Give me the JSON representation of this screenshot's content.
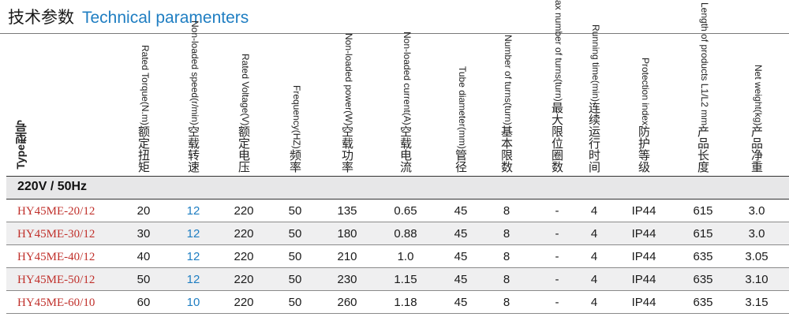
{
  "title": {
    "cn": "技术参数",
    "en": "Technical paramenters"
  },
  "type_header": {
    "en": "Type",
    "cn": "型号"
  },
  "columns": [
    {
      "key": "torque",
      "en": "Rated Torque(N.m)",
      "cn": "额定扭矩"
    },
    {
      "key": "speed",
      "en": "Non-loaded speed(r/min)",
      "cn": "空载转速"
    },
    {
      "key": "voltage",
      "en": "Rated Voltage(V)",
      "cn": "额定电压"
    },
    {
      "key": "freq",
      "en": "Frequency(HZ)",
      "cn": "频率"
    },
    {
      "key": "power",
      "en": "Non-loaded power(W)",
      "cn": "空载功率"
    },
    {
      "key": "current",
      "en": "Non-loaded current(A)",
      "cn": "空载电流"
    },
    {
      "key": "tube",
      "en": "Tube diameter(mm)",
      "cn": "管径"
    },
    {
      "key": "turns",
      "en": "Number of turns(turn)",
      "cn": "基本限数"
    },
    {
      "key": "maxturns",
      "en": "Max number of turns(turn)",
      "cn": "最大限位圈数"
    },
    {
      "key": "runtime",
      "en": "Running time(min)",
      "cn": "连续运行时间"
    },
    {
      "key": "ip",
      "en": "Protection index",
      "cn": "防护等级"
    },
    {
      "key": "length",
      "en": "Length of products L1/L2 mm",
      "cn": "产品长度"
    },
    {
      "key": "weight",
      "en": "Net weight(kg)",
      "cn": "产品净重"
    }
  ],
  "section": "220V / 50Hz",
  "rows": [
    {
      "model": "HY45ME-20/12",
      "torque": "20",
      "speed": "12",
      "voltage": "220",
      "freq": "50",
      "power": "135",
      "current": "0.65",
      "tube": "45",
      "turns": "8",
      "maxturns": "-",
      "runtime": "4",
      "ip": "IP44",
      "length": "615",
      "weight": "3.0"
    },
    {
      "model": "HY45ME-30/12",
      "torque": "30",
      "speed": "12",
      "voltage": "220",
      "freq": "50",
      "power": "180",
      "current": "0.88",
      "tube": "45",
      "turns": "8",
      "maxturns": "-",
      "runtime": "4",
      "ip": "IP44",
      "length": "615",
      "weight": "3.0"
    },
    {
      "model": "HY45ME-40/12",
      "torque": "40",
      "speed": "12",
      "voltage": "220",
      "freq": "50",
      "power": "210",
      "current": "1.0",
      "tube": "45",
      "turns": "8",
      "maxturns": "-",
      "runtime": "4",
      "ip": "IP44",
      "length": "635",
      "weight": "3.05"
    },
    {
      "model": "HY45ME-50/12",
      "torque": "50",
      "speed": "12",
      "voltage": "220",
      "freq": "50",
      "power": "230",
      "current": "1.15",
      "tube": "45",
      "turns": "8",
      "maxturns": "-",
      "runtime": "4",
      "ip": "IP44",
      "length": "635",
      "weight": "3.10"
    },
    {
      "model": "HY45ME-60/10",
      "torque": "60",
      "speed": "10",
      "voltage": "220",
      "freq": "50",
      "power": "260",
      "current": "1.18",
      "tube": "45",
      "turns": "8",
      "maxturns": "-",
      "runtime": "4",
      "ip": "IP44",
      "length": "635",
      "weight": "3.15"
    }
  ],
  "colors": {
    "accent_blue": "#1f7ec2",
    "model_red": "#c0302b",
    "row_alt": "#efeff0"
  }
}
